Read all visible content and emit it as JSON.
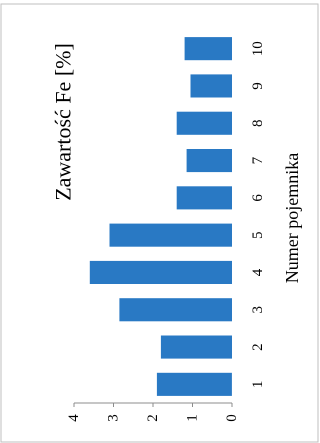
{
  "chart_data": {
    "type": "bar",
    "title": "Zawartość Fe [%]",
    "xlabel": "Numer pojemnika",
    "ylabel": "",
    "categories": [
      "1",
      "2",
      "3",
      "4",
      "5",
      "6",
      "7",
      "8",
      "9",
      "10"
    ],
    "values": [
      1.9,
      1.8,
      2.85,
      3.6,
      3.1,
      1.4,
      1.15,
      1.4,
      1.05,
      1.2
    ],
    "ylim": [
      0,
      4
    ],
    "yticks": [
      "0",
      "1",
      "2",
      "3",
      "4"
    ],
    "grid": false,
    "legend": "none",
    "bar_color": "#2979c4",
    "orientation": "rotated-90-clockwise"
  }
}
